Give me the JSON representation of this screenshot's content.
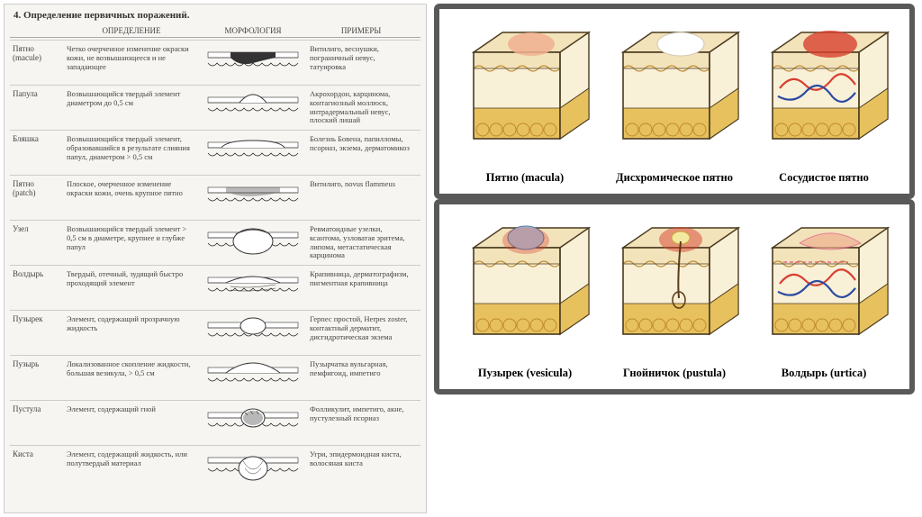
{
  "left": {
    "title": "4. Определение первичных поражений.",
    "columns": [
      "",
      "ОПРЕДЕЛЕНИЕ",
      "МОРФОЛОГИЯ",
      "ПРИМЕРЫ"
    ],
    "rows": [
      {
        "name": "Пятно\n(macule)",
        "def": "Четко очерченное изменение окраски кожи, не возвышающееся и не западающее",
        "ex": "Витилиго, веснушки, пограничный невус, татуировка",
        "morph": "macule"
      },
      {
        "name": "Папула",
        "def": "Возвышающийся твердый элемент диаметром до 0,5 см",
        "ex": "Акрохордон, карцинома, контагиозный моллюск, интрадермальный невус, плоский лишай",
        "morph": "papule"
      },
      {
        "name": "Бляшка",
        "def": "Возвышающийся твердый элемент, образовавшийся в результате слияния папул, диаметром > 0,5 см",
        "ex": "Болезнь Бовена, папилломы, псориаз, экзема, дерматомикоз",
        "morph": "plaque"
      },
      {
        "name": "Пятно\n(patch)",
        "def": "Плоское, очерченное изменение окраски кожи, очень крупное пятно",
        "ex": "Витилиго, novus flammeus",
        "morph": "patch"
      },
      {
        "name": "Узел",
        "def": "Возвышающийся твердый элемент > 0,5 см в диаметре, крупнее и глубже папул",
        "ex": "Ревматоидные узелки, ксантома, узловатая эритема, липома, метастатическая карцинома",
        "morph": "nodule"
      },
      {
        "name": "Волдырь",
        "def": "Твердый, отечный, зудящий быстро проходящий элемент",
        "ex": "Крапивница, дерматографизм, пигментная крапивница",
        "morph": "wheal"
      },
      {
        "name": "Пузырек",
        "def": "Элемент, содержащий прозрачную жидкость",
        "ex": "Герпес простой, Herpes zoster, контактный дерматит, дисгидротическая экзема",
        "morph": "vesicle"
      },
      {
        "name": "Пузырь",
        "def": "Локализованное скопление жидкости, большая везикула, > 0,5 см",
        "ex": "Пузырчатка вульгарная, пемфигоид, импетиго",
        "morph": "bulla"
      },
      {
        "name": "Пустула",
        "def": "Элемент, содержащий гной",
        "ex": "Фолликулит, импетиго, акне, пустулезный псориаз",
        "morph": "pustule"
      },
      {
        "name": "Киста",
        "def": "Элемент, содержащий жидкость, или полутвердый материал",
        "ex": "Угри, эпидермоидная киста, волосяная киста",
        "morph": "cyst"
      }
    ]
  },
  "right": {
    "groups": [
      {
        "tiles": [
          {
            "label": "Пятно (macula)",
            "cube": "macula"
          },
          {
            "label": "Дисхромическое пятно",
            "cube": "dyschromic"
          },
          {
            "label": "Сосудистое пятно",
            "cube": "vascular"
          }
        ]
      },
      {
        "tiles": [
          {
            "label": "Пузырек (vesicula)",
            "cube": "vesicula"
          },
          {
            "label": "Гнойничок (pustula)",
            "cube": "pustula"
          },
          {
            "label": "Волдырь (urtica)",
            "cube": "urtica"
          }
        ]
      }
    ]
  },
  "colors": {
    "epidermis": "#f3e3bb",
    "dermis": "#f9f0d8",
    "fat": "#e6c15e",
    "fatStroke": "#c08a2f",
    "outline": "#4a3a1e",
    "pink": "#f0b090",
    "red": "#d84030",
    "blue": "#2c4aa0",
    "vesFluid": "#a7d1ea",
    "white": "#ffffff"
  }
}
